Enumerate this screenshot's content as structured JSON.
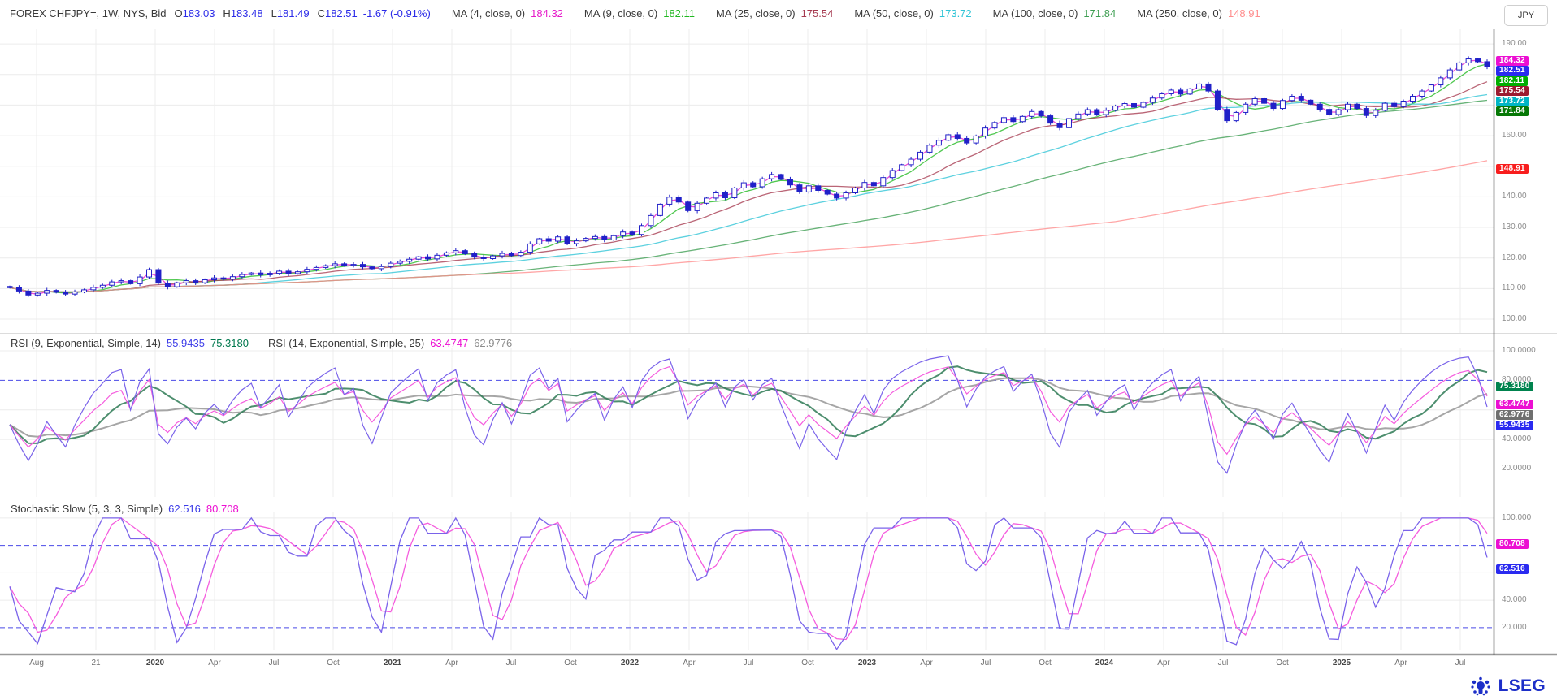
{
  "window": {
    "currency_badge": "JPY",
    "brand": "LSEG"
  },
  "header": {
    "instrument": "FOREX CHFJPY=, 1W, NYS, Bid",
    "value_color": "#2B2BE8",
    "ohlc": [
      {
        "k": "O",
        "v": "183.03"
      },
      {
        "k": "H",
        "v": "183.48"
      },
      {
        "k": "L",
        "v": "181.49"
      },
      {
        "k": "C",
        "v": "182.51"
      }
    ],
    "change": "-1.67 (-0.91%)",
    "mas": [
      {
        "label": "MA (4, close, 0)",
        "value": "184.32",
        "color": "#E619C9",
        "window": 2
      },
      {
        "label": "MA (9, close, 0)",
        "value": "182.11",
        "color": "#1FB81F",
        "window": 5
      },
      {
        "label": "MA (25, close, 0)",
        "value": "175.54",
        "color": "#A63A50",
        "window": 12
      },
      {
        "label": "MA (50, close, 0)",
        "value": "173.72",
        "color": "#2FC4D6",
        "window": 25
      },
      {
        "label": "MA (100, close, 0)",
        "value": "171.84",
        "color": "#3E9E52",
        "window": 50
      },
      {
        "label": "MA (250, close, 0)",
        "value": "148.91",
        "color": "#FF8D8D",
        "window": 120
      }
    ]
  },
  "rsi_legend": {
    "label1": "RSI (9, Exponential, Simple, 14)",
    "value1": "55.9435",
    "value1_color": "#3C3CE8",
    "value2": "75.3180",
    "value2_color": "#00784E",
    "label2": "RSI (14, Exponential, Simple, 25)",
    "value3": "63.4747",
    "value3_color": "#EC0FD2",
    "value4": "62.9776",
    "value4_color": "#8C8C8C"
  },
  "stoch_legend": {
    "label": "Stochastic Slow (5, 3, 3, Simple)",
    "value_k": "62.516",
    "value_k_color": "#3C3CE8",
    "value_d": "80.708",
    "value_d_color": "#EC0FD2"
  },
  "axis_badges": {
    "main": [
      {
        "t": "184.32",
        "v": 184.32,
        "bg": "#EC0FD2"
      },
      {
        "t": "182.51",
        "v": 182.51,
        "bg": "#2A2AF0"
      },
      {
        "t": "182.11",
        "v": 182.11,
        "bg": "#00AE00"
      },
      {
        "t": "175.54",
        "v": 175.54,
        "bg": "#9B1B30"
      },
      {
        "t": "173.72",
        "v": 173.72,
        "bg": "#00B5C5"
      },
      {
        "t": "171.84",
        "v": 171.84,
        "bg": "#067806"
      },
      {
        "t": "148.91",
        "v": 148.91,
        "bg": "#F81D1D"
      }
    ],
    "rsi": [
      {
        "t": "75.3180",
        "v": 75.318,
        "bg": "#00834E"
      },
      {
        "t": "63.4747",
        "v": 63.4747,
        "bg": "#EC0FD2"
      },
      {
        "t": "62.9776",
        "v": 62.9776,
        "bg": "#6F6F6F"
      },
      {
        "t": "55.9435",
        "v": 55.9435,
        "bg": "#2A2AF0"
      }
    ],
    "stoch": [
      {
        "t": "80.708",
        "v": 80.708,
        "bg": "#EC0FD2"
      },
      {
        "t": "62.516",
        "v": 62.516,
        "bg": "#2A2AF0"
      }
    ]
  },
  "chart_data": {
    "type": "candlestick",
    "title": "FOREX CHFJPY=, 1W, NYS, Bid",
    "ylabel": "JPY",
    "legend_position": "top",
    "grid": true,
    "x_labels": [
      {
        "t": "Aug"
      },
      {
        "t": "21"
      },
      {
        "t": "2020",
        "year": true
      },
      {
        "t": "Apr"
      },
      {
        "t": "Jul"
      },
      {
        "t": "Oct"
      },
      {
        "t": "2021",
        "year": true
      },
      {
        "t": "Apr"
      },
      {
        "t": "Jul"
      },
      {
        "t": "Oct"
      },
      {
        "t": "2022",
        "year": true
      },
      {
        "t": "Apr"
      },
      {
        "t": "Jul"
      },
      {
        "t": "Oct"
      },
      {
        "t": "2023",
        "year": true
      },
      {
        "t": "Apr"
      },
      {
        "t": "Jul"
      },
      {
        "t": "Oct"
      },
      {
        "t": "2024",
        "year": true
      },
      {
        "t": "Apr"
      },
      {
        "t": "Jul"
      },
      {
        "t": "Oct"
      },
      {
        "t": "2025",
        "year": true
      },
      {
        "t": "Apr"
      },
      {
        "t": "Jul"
      }
    ],
    "closes": [
      110.3,
      109.2,
      107.9,
      108.5,
      109.4,
      108.8,
      108.2,
      108.9,
      109.6,
      110.4,
      111.1,
      112.2,
      112.6,
      111.6,
      113.8,
      116.2,
      111.8,
      110.6,
      111.9,
      112.6,
      111.9,
      112.9,
      113.5,
      113.1,
      113.9,
      114.6,
      115.1,
      114.5,
      115.0,
      115.7,
      114.9,
      115.5,
      116.3,
      116.9,
      117.5,
      118.1,
      117.6,
      117.9,
      117.1,
      116.5,
      117.2,
      118.3,
      118.9,
      119.6,
      120.4,
      119.7,
      120.9,
      121.7,
      122.4,
      121.4,
      120.3,
      119.8,
      120.7,
      121.5,
      120.8,
      121.9,
      124.6,
      126.3,
      125.5,
      126.9,
      124.7,
      125.6,
      126.4,
      127.0,
      125.9,
      127.3,
      128.5,
      127.7,
      130.6,
      133.9,
      137.6,
      139.9,
      138.3,
      135.5,
      137.9,
      139.6,
      141.3,
      139.7,
      142.9,
      144.6,
      143.3,
      145.9,
      147.3,
      145.7,
      143.9,
      141.6,
      143.6,
      142.1,
      140.9,
      139.6,
      141.3,
      142.9,
      144.7,
      143.6,
      146.3,
      148.6,
      150.5,
      152.3,
      154.6,
      156.9,
      158.5,
      160.3,
      159.1,
      157.6,
      159.9,
      162.5,
      164.3,
      165.9,
      164.6,
      166.3,
      167.9,
      166.5,
      164.1,
      162.6,
      165.6,
      167.1,
      168.5,
      166.9,
      168.3,
      169.7,
      170.5,
      169.3,
      170.9,
      172.3,
      173.7,
      174.9,
      173.6,
      175.3,
      176.9,
      174.6,
      168.6,
      164.9,
      167.6,
      170.3,
      172.1,
      170.6,
      168.9,
      171.5,
      172.9,
      171.6,
      170.3,
      168.6,
      166.9,
      168.5,
      170.3,
      168.9,
      166.6,
      168.3,
      170.6,
      169.5,
      171.3,
      172.9,
      174.6,
      176.6,
      178.9,
      181.5,
      183.8,
      185.1,
      184.2,
      182.51
    ],
    "last_bar": {
      "open": 183.03,
      "high": 183.48,
      "low": 181.49,
      "close": 182.51
    },
    "main": {
      "ylim": [
        95.5,
        194.8
      ],
      "ticks": [
        {
          "v": 190,
          "t": "190.00"
        },
        {
          "v": 160,
          "t": "160.00"
        },
        {
          "v": 140,
          "t": "140.00"
        },
        {
          "v": 130,
          "t": "130.00"
        },
        {
          "v": 120,
          "t": "120.00"
        },
        {
          "v": 110,
          "t": "110.00"
        },
        {
          "v": 100,
          "t": "100.00"
        }
      ]
    },
    "rsi": {
      "ylim": [
        1.0,
        102.2
      ],
      "grid": [
        40,
        60,
        100
      ],
      "levels": [
        80,
        20
      ],
      "ticks": [
        {
          "v": 100,
          "t": "100.0000"
        },
        {
          "v": 80,
          "t": "80.0000"
        },
        {
          "v": 40,
          "t": "40.0000"
        },
        {
          "v": 20,
          "t": "20.0000"
        }
      ],
      "fast1_period": 4,
      "sig1_window": 8,
      "fast2_period": 7,
      "sig2_window": 12,
      "colors": {
        "fast1": "#7A63EA",
        "sig1": "#2E7A55",
        "fast2": "#F55CDE",
        "sig2": "#9C9C9C"
      }
    },
    "stoch": {
      "ylim": [
        3.9,
        104.7
      ],
      "grid": [
        40,
        60,
        100
      ],
      "levels": [
        80,
        20
      ],
      "ticks": [
        {
          "v": 100,
          "t": "100.000"
        },
        {
          "v": 40,
          "t": "40.000"
        },
        {
          "v": 20,
          "t": "20.000"
        }
      ],
      "k_period": 5,
      "k_smooth": 3,
      "d_smooth": 3,
      "colors": {
        "k": "#7A63EA",
        "d": "#F55CDE"
      }
    },
    "levels_color": "#4A4AE8",
    "candle_color": "#2020C8"
  }
}
